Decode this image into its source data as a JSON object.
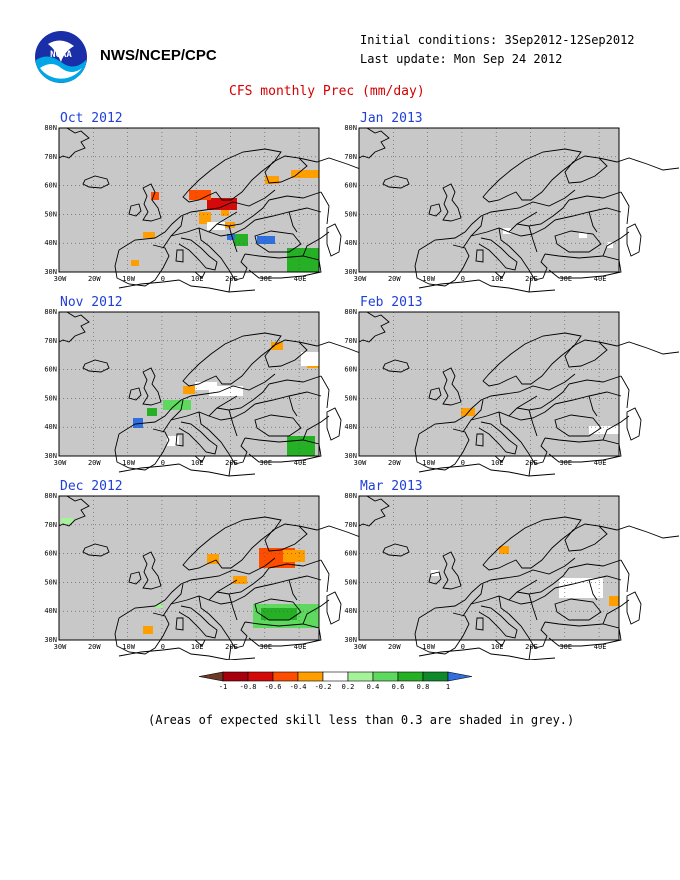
{
  "header": {
    "agency": "NWS/NCEP/CPC",
    "initial_conditions": "Initial conditions: 3Sep2012-12Sep2012",
    "last_update": "Last update: Mon Sep 24 2012",
    "title": "CFS monthly Prec (mm/day)",
    "logo_text": "NOAA"
  },
  "axes": {
    "lat_labels": [
      "80N",
      "70N",
      "60N",
      "50N",
      "40N",
      "30N"
    ],
    "lon_labels": [
      "30W",
      "20W",
      "10W",
      "0",
      "10E",
      "20E",
      "30E",
      "40E"
    ]
  },
  "panels": [
    {
      "title": "Oct 2012"
    },
    {
      "title": "Jan 2013"
    },
    {
      "title": "Nov 2012"
    },
    {
      "title": "Feb 2013"
    },
    {
      "title": "Dec 2012"
    },
    {
      "title": "Mar 2013"
    }
  ],
  "colorbar": {
    "labels": [
      "-1",
      "-0.8",
      "-0.6",
      "-0.4",
      "-0.2",
      "0.2",
      "0.4",
      "0.6",
      "0.8",
      "1"
    ],
    "colors": [
      "#6e3a26",
      "#a8000c",
      "#d40a0a",
      "#ff4d00",
      "#ff9e00",
      "#ffffff",
      "#a6f29a",
      "#5fd85f",
      "#26b026",
      "#0e8a2a",
      "#2f6fe0"
    ]
  },
  "colors": {
    "skill_mask": "#c8c8c8",
    "grid": "#555555",
    "coast": "#000000",
    "title_red": "#d40000",
    "panel_title_blue": "#1f3fd8"
  },
  "footnote": "(Areas of expected skill less than 0.3 are shaded in grey.)"
}
